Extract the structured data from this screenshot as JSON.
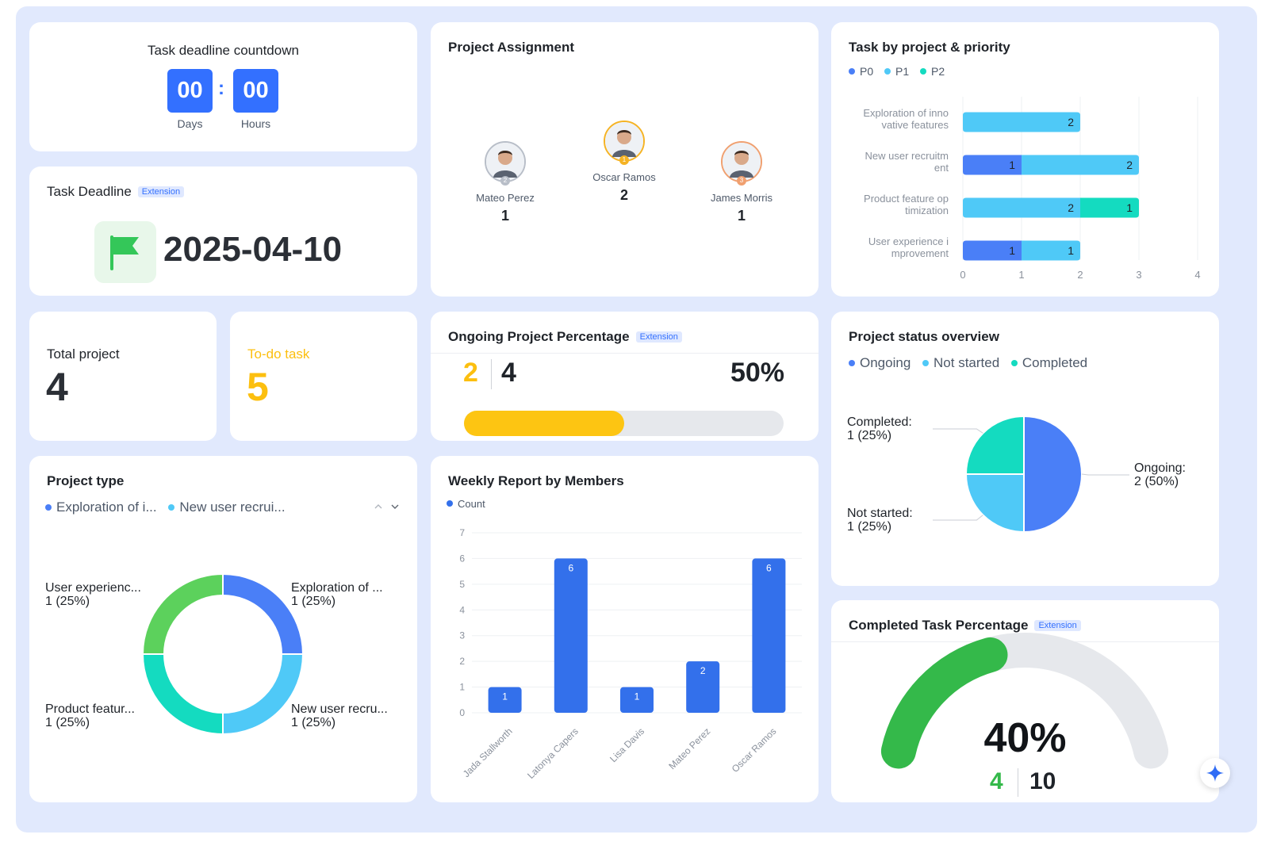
{
  "countdown": {
    "title": "Task deadline countdown",
    "days": "00",
    "hours": "00",
    "separator": ":",
    "days_label": "Days",
    "hours_label": "Hours",
    "accent": "#3370ff"
  },
  "deadline": {
    "title": "Task Deadline",
    "badge": "Extension",
    "date": "2025-04-10",
    "icon": "flag-icon",
    "icon_color": "#34c759"
  },
  "assignment": {
    "title": "Project Assignment",
    "members": [
      {
        "name": "Oscar Ramos",
        "count": "2",
        "rank": "1",
        "ring": "#f5b324"
      },
      {
        "name": "Mateo Perez",
        "count": "1",
        "rank": "2",
        "ring": "#b8bec8"
      },
      {
        "name": "James Morris",
        "count": "1",
        "rank": "3",
        "ring": "#f0a070"
      }
    ]
  },
  "priority_chart": {
    "title": "Task by project & priority",
    "legend": [
      {
        "label": "P0",
        "color": "#4a7ff7"
      },
      {
        "label": "P1",
        "color": "#4fc9f7"
      },
      {
        "label": "P2",
        "color": "#14dbc0"
      }
    ]
  },
  "stats": {
    "total_project_label": "Total project",
    "total_project_value": "4",
    "todo_label": "To-do task",
    "todo_value": "5",
    "todo_color": "#fcbf0f"
  },
  "ongoing": {
    "title": "Ongoing Project Percentage",
    "badge": "Extension",
    "numerator": "2",
    "denominator": "4",
    "percent_text": "50%",
    "fill_fraction": 0.5,
    "bar_color": "#fdc512"
  },
  "status_chart": {
    "title": "Project status overview",
    "legend": [
      {
        "label": "Ongoing",
        "color": "#4a7ff7"
      },
      {
        "label": "Not started",
        "color": "#4fc9f7"
      },
      {
        "label": "Completed",
        "color": "#14dbc0"
      }
    ]
  },
  "type_chart": {
    "title": "Project type",
    "legend": [
      {
        "label": "Exploration of i...",
        "color": "#4a7ff7"
      },
      {
        "label": "New user recrui...",
        "color": "#4fc9f7"
      }
    ]
  },
  "weekly_chart": {
    "title": "Weekly Report by Members",
    "legend": [
      {
        "label": "Count",
        "color": "#3370eb"
      }
    ]
  },
  "completed": {
    "title": "Completed Task Percentage",
    "badge": "Extension",
    "percent_text": "40%",
    "done": "4",
    "total": "10",
    "fraction": 0.4,
    "arc_color": "#34b94a",
    "done_color": "#34b94a"
  },
  "chart_data": [
    {
      "id": "priority",
      "type": "bar",
      "orientation": "horizontal",
      "stacked": true,
      "categories": [
        "Exploration of innovative features",
        "New user recruitment",
        "Product feature optimization",
        "User experience improvement"
      ],
      "category_lines": [
        [
          "Exploration of inno",
          "vative features"
        ],
        [
          "New user recruitm",
          "ent"
        ],
        [
          "Product feature op",
          "timization"
        ],
        [
          "User experience i",
          "mprovement"
        ]
      ],
      "series": [
        {
          "name": "P0",
          "values": [
            0,
            1,
            0,
            1
          ],
          "color": "#4a7ff7"
        },
        {
          "name": "P1",
          "values": [
            2,
            2,
            2,
            1
          ],
          "color": "#4fc9f7"
        },
        {
          "name": "P2",
          "values": [
            0,
            0,
            1,
            0
          ],
          "color": "#14dbc0"
        }
      ],
      "xlim": [
        0,
        4
      ],
      "xticks": [
        "0",
        "1",
        "2",
        "3",
        "4"
      ],
      "grid": true,
      "legend": "top-left"
    },
    {
      "id": "status",
      "type": "pie",
      "slices": [
        {
          "label": "Ongoing",
          "value": 2,
          "label_text": "Ongoing:",
          "value_text": "2 (50%)",
          "color": "#4a7ff7"
        },
        {
          "label": "Not started",
          "value": 1,
          "label_text": "Not started:",
          "value_text": "1 (25%)",
          "color": "#4fc9f7"
        },
        {
          "label": "Completed",
          "value": 1,
          "label_text": "Completed:",
          "value_text": "1 (25%)",
          "color": "#14dbc0"
        }
      ],
      "legend": "top-left"
    },
    {
      "id": "type",
      "type": "pie",
      "donut": true,
      "slices": [
        {
          "label": "Exploration of ...",
          "value": 1,
          "value_text": "1 (25%)",
          "color": "#4a7ff7"
        },
        {
          "label": "New user recru...",
          "value": 1,
          "value_text": "1 (25%)",
          "color": "#4fc9f7"
        },
        {
          "label": "Product featur...",
          "value": 1,
          "value_text": "1 (25%)",
          "color": "#14dbc0"
        },
        {
          "label": "User experienc...",
          "value": 1,
          "value_text": "1 (25%)",
          "color": "#5cd15c"
        }
      ],
      "legend": "top-left"
    },
    {
      "id": "weekly",
      "type": "bar",
      "categories": [
        "Jada Stallworth",
        "Latonya Capers",
        "Lisa Davis",
        "Mateo Perez",
        "Oscar Ramos"
      ],
      "series": [
        {
          "name": "Count",
          "values": [
            1,
            6,
            1,
            2,
            6
          ],
          "color": "#3370eb"
        }
      ],
      "ylim": [
        0,
        7
      ],
      "yticks": [
        "0",
        "1",
        "2",
        "3",
        "4",
        "5",
        "6",
        "7"
      ],
      "grid": true,
      "legend": "top-left"
    }
  ]
}
